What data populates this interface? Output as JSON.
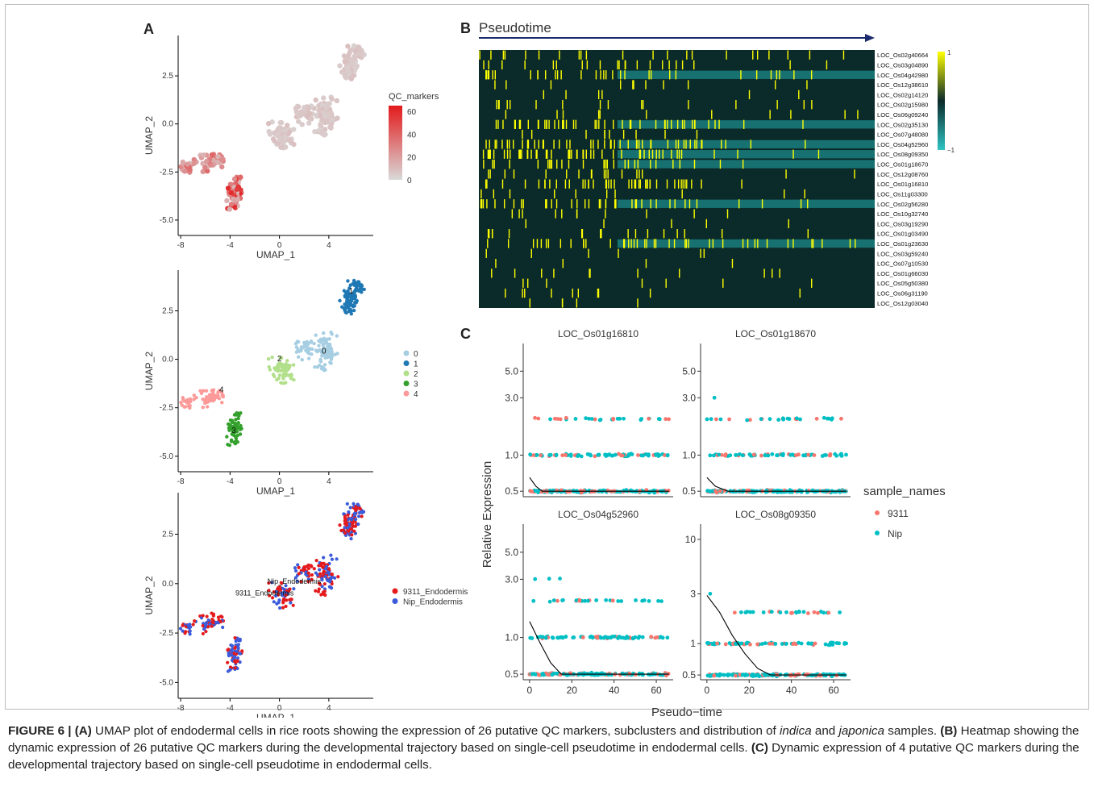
{
  "panel_letters": {
    "a": "A",
    "b": "B",
    "c": "C"
  },
  "caption": {
    "label": "FIGURE 6 | (A)",
    "text_a": " UMAP plot of endodermal cells in rice roots showing the expression of 26 putative QC markers, subclusters and distribution of ",
    "indica": "indica",
    "and": " and ",
    "japonica": "japonica",
    "text_b": " samples. ",
    "label_b": "(B)",
    "text_c": " Heatmap showing the dynamic expression of 26 putative QC markers during the developmental trajectory based on single-cell pseudotime in endodermal cells. ",
    "label_c": "(C)",
    "text_d": " Dynamic expression of 4 putative QC markers during the developmental trajectory based on single-cell pseudotime in endodermal cells."
  },
  "chart_data": [
    {
      "id": "umap_qc",
      "type": "scatter",
      "xlabel": "UMAP_1",
      "ylabel": "UMAP_2",
      "xticks": [
        -8,
        -4,
        0,
        4
      ],
      "yticks": [
        2.5,
        0.0,
        -2.5,
        -5.0
      ],
      "xlim": [
        -8.2,
        7.6
      ],
      "ylim": [
        -5.8,
        4.6
      ],
      "legend": {
        "title": "QC_markers",
        "ticks": [
          60,
          40,
          20,
          0
        ],
        "range": [
          0,
          65
        ],
        "low_color": "#d9d9d9",
        "high_color": "#e31a1c",
        "position": "right"
      }
    },
    {
      "id": "umap_clusters",
      "type": "scatter",
      "xlabel": "UMAP_1",
      "ylabel": "UMAP_2",
      "xticks": [
        -8,
        -4,
        0,
        4
      ],
      "yticks": [
        2.5,
        0.0,
        -2.5,
        -5.0
      ],
      "xlim": [
        -8.2,
        7.6
      ],
      "ylim": [
        -5.8,
        4.6
      ],
      "series": [
        {
          "name": "0",
          "color": "#a6cee3",
          "label_at": [
            3.6,
            0.3
          ]
        },
        {
          "name": "1",
          "color": "#1f78b4",
          "label_at": [
            5.8,
            3.4
          ]
        },
        {
          "name": "2",
          "color": "#b2df8a",
          "label_at": [
            0,
            -0.1
          ]
        },
        {
          "name": "3",
          "color": "#33a02c",
          "label_at": [
            -3.7,
            -3.8
          ]
        },
        {
          "name": "4",
          "color": "#fb9a99",
          "label_at": [
            -4.7,
            -1.7
          ]
        }
      ],
      "legend_position": "right"
    },
    {
      "id": "umap_samples",
      "type": "scatter",
      "xlabel": "UMAP_1",
      "ylabel": "UMAP_2",
      "xticks": [
        -8,
        -4,
        0,
        4
      ],
      "yticks": [
        2.5,
        0.0,
        -2.5,
        -5.0
      ],
      "xlim": [
        -8.2,
        7.6
      ],
      "ylim": [
        -5.8,
        4.6
      ],
      "series": [
        {
          "name": "9311_Endodermis",
          "color": "#e41a1c",
          "label_at": [
            -1.2,
            -0.6
          ]
        },
        {
          "name": "Nip_Endodermis",
          "color": "#3b5bdb",
          "label_at": [
            1.2,
            0.0
          ]
        }
      ],
      "legend_position": "right"
    },
    {
      "id": "heatmap",
      "type": "heatmap",
      "title": "Pseudotime",
      "rows": [
        "LOC_Os02g40664",
        "LOC_Os03g04890",
        "LOC_Os04g42980",
        "LOC_Os12g38610",
        "LOC_Os02g14120",
        "LOC_Os02g15980",
        "LOC_Os06g09240",
        "LOC_Os02g35130",
        "LOC_Os07g48080",
        "LOC_Os04g52960",
        "LOC_Os08g09350",
        "LOC_Os01g18670",
        "LOC_Os12g08760",
        "LOC_Os01g16810",
        "LOC_Os11g03300",
        "LOC_Os02g56280",
        "LOC_Os10g32740",
        "LOC_Os03g19290",
        "LOC_Os01g03490",
        "LOC_Os01g23630",
        "LOC_Os03g59240",
        "LOC_Os07g10530",
        "LOC_Os01g66030",
        "LOC_Os05g50380",
        "LOC_Os06g31190",
        "LOC_Os12g03040"
      ],
      "colorbar": {
        "max": 1,
        "min": -1,
        "ticks": [
          "1",
          "−1"
        ],
        "high": "#ffff00",
        "mid": "#0b2a2a",
        "low": "#2ec4c4",
        "position": "right"
      },
      "row_activity_early": [
        0.3,
        0.45,
        0.55,
        0.2,
        0.1,
        0.3,
        0.12,
        0.9,
        0.15,
        0.95,
        0.95,
        0.6,
        0.3,
        0.75,
        0.25,
        0.7,
        0.2,
        0.1,
        0.25,
        0.5,
        0.1,
        0.1,
        0.12,
        0.1,
        0.08,
        0.1
      ],
      "row_activity_late": [
        0.3,
        0.1,
        0.25,
        0.05,
        0.05,
        0.08,
        0.05,
        0.2,
        0.05,
        0.15,
        0.2,
        0.05,
        0.1,
        0.1,
        0.05,
        0.15,
        0.05,
        0.05,
        0.06,
        0.4,
        0.1,
        0.05,
        0.05,
        0.03,
        0.03,
        0.03
      ],
      "teal_rows": [
        2,
        7,
        9,
        10,
        11,
        15,
        19
      ]
    },
    {
      "id": "pseudotime_facets",
      "type": "scatter",
      "xlabel": "Pseudo−time",
      "ylabel": "Relative Expression",
      "xticks": [
        0,
        20,
        40,
        60
      ],
      "xlim": [
        -3,
        68
      ],
      "legend": {
        "title": "sample_names",
        "entries": [
          {
            "name": "9311",
            "color": "#f8766d"
          },
          {
            "name": "Nip",
            "color": "#00bfc4"
          }
        ],
        "position": "right"
      },
      "facets": [
        {
          "title": "LOC_Os01g16810",
          "yscale": "log",
          "yticks": [
            "0.5",
            "1.0",
            "3.0",
            "5.0"
          ],
          "ytick_values": [
            0.5,
            1.0,
            3.0,
            5.0
          ],
          "ylim": [
            0.45,
            8.5
          ],
          "trend": [
            [
              0,
              0.65
            ],
            [
              3,
              0.55
            ],
            [
              6,
              0.5
            ],
            [
              66,
              0.5
            ]
          ]
        },
        {
          "title": "LOC_Os01g18670",
          "yscale": "log",
          "yticks": [
            "0.5",
            "1.0",
            "3.0",
            "5.0"
          ],
          "ytick_values": [
            0.5,
            1.0,
            3.0,
            5.0
          ],
          "ylim": [
            0.45,
            8.5
          ],
          "trend": [
            [
              0,
              0.65
            ],
            [
              4,
              0.55
            ],
            [
              10,
              0.5
            ],
            [
              66,
              0.5
            ]
          ]
        },
        {
          "title": "LOC_Os04g52960",
          "yscale": "log",
          "yticks": [
            "0.5",
            "1.0",
            "3.0",
            "5.0"
          ],
          "ytick_values": [
            0.5,
            1.0,
            3.0,
            5.0
          ],
          "ylim": [
            0.45,
            8.5
          ],
          "trend": [
            [
              0,
              1.35
            ],
            [
              5,
              0.9
            ],
            [
              10,
              0.62
            ],
            [
              15,
              0.5
            ],
            [
              66,
              0.5
            ]
          ]
        },
        {
          "title": "LOC_Os08g09350",
          "yscale": "log",
          "yticks": [
            "0.5",
            "1",
            "3",
            "10"
          ],
          "ytick_values": [
            0.5,
            1,
            3,
            10
          ],
          "ylim": [
            0.45,
            14
          ],
          "trend": [
            [
              0,
              2.9
            ],
            [
              6,
              2.0
            ],
            [
              12,
              1.2
            ],
            [
              18,
              0.8
            ],
            [
              24,
              0.58
            ],
            [
              30,
              0.5
            ],
            [
              66,
              0.5
            ]
          ]
        }
      ]
    }
  ]
}
